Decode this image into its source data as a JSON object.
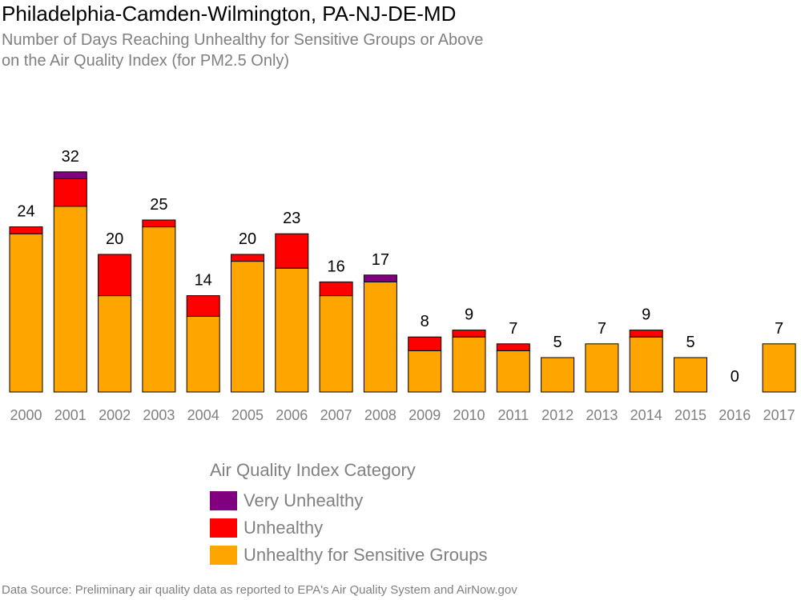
{
  "title": "Philadelphia-Camden-Wilmington, PA-NJ-DE-MD",
  "subtitle_line1": "Number of Days Reaching Unhealthy for Sensitive Groups or Above",
  "subtitle_line2": "on the Air Quality Index (for PM2.5 Only)",
  "source": "Data Source: Preliminary air quality data as reported to EPA's Air Quality System and AirNow.gov",
  "legend": {
    "title": "Air Quality Index Category",
    "items": [
      {
        "label": "Very Unhealthy",
        "color": "#800080"
      },
      {
        "label": "Unhealthy",
        "color": "#ff0000"
      },
      {
        "label": "Unhealthy for Sensitive Groups",
        "color": "#ffa500"
      }
    ]
  },
  "chart_data": {
    "type": "bar",
    "stacked": true,
    "categories": [
      "2000",
      "2001",
      "2002",
      "2003",
      "2004",
      "2005",
      "2006",
      "2007",
      "2008",
      "2009",
      "2010",
      "2011",
      "2012",
      "2013",
      "2014",
      "2015",
      "2016",
      "2017"
    ],
    "series": [
      {
        "name": "Unhealthy for Sensitive Groups",
        "color": "#ffa500",
        "values": [
          23,
          27,
          14,
          24,
          11,
          19,
          18,
          14,
          16,
          6,
          8,
          6,
          5,
          7,
          8,
          5,
          0,
          7
        ]
      },
      {
        "name": "Unhealthy",
        "color": "#ff0000",
        "values": [
          1,
          4,
          6,
          1,
          3,
          1,
          5,
          2,
          0,
          2,
          1,
          1,
          0,
          0,
          1,
          0,
          0,
          0
        ]
      },
      {
        "name": "Very Unhealthy",
        "color": "#800080",
        "values": [
          0,
          1,
          0,
          0,
          0,
          0,
          0,
          0,
          1,
          0,
          0,
          0,
          0,
          0,
          0,
          0,
          0,
          0
        ]
      }
    ],
    "totals": [
      24,
      32,
      20,
      25,
      14,
      20,
      23,
      16,
      17,
      8,
      9,
      7,
      5,
      7,
      9,
      5,
      0,
      7
    ],
    "ylim": [
      0,
      35
    ],
    "grid": false,
    "legend_position": "bottom"
  }
}
